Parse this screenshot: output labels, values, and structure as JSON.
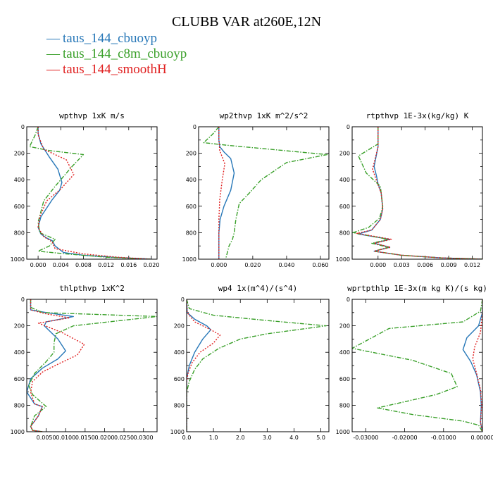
{
  "title": "CLUBB VAR at260E,12N",
  "legend": [
    {
      "label": "taus_144_cbuoyp",
      "color": "#2878b8",
      "dash": "solid"
    },
    {
      "label": "taus_144_c8m_cbuoyp",
      "color": "#3aa02a",
      "dash": "dashdot"
    },
    {
      "label": "taus_144_smoothH",
      "color": "#e02020",
      "dash": "dotted"
    }
  ],
  "chart_data": [
    {
      "type": "line",
      "title": "wpthvp  1xK m/s",
      "xlim": [
        -0.002,
        0.021
      ],
      "ylim": [
        1000,
        0
      ],
      "xticks": [
        0.0,
        0.004,
        0.008,
        0.012,
        0.016,
        0.02
      ],
      "xtick_labels": [
        "0.000",
        "0.004",
        "0.008",
        "0.012",
        "0.016",
        "0.020"
      ],
      "yticks": [
        0,
        200,
        400,
        600,
        800,
        1000
      ],
      "series": [
        {
          "name": "taus_144_cbuoyp",
          "x": [
            0.0,
            0.0,
            0.0005,
            0.002,
            0.0035,
            0.0042,
            0.0038,
            0.0025,
            0.0005,
            0.0,
            0.0005,
            0.0015,
            0.0025,
            0.003,
            0.0045,
            0.008,
            0.013,
            0.02
          ],
          "y": [
            0,
            50,
            130,
            230,
            320,
            420,
            480,
            550,
            680,
            760,
            810,
            840,
            860,
            900,
            950,
            970,
            985,
            1000
          ]
        },
        {
          "name": "taus_144_c8m_cbuoyp",
          "x": [
            0.0,
            -0.0005,
            -0.0015,
            0.002,
            0.008,
            0.006,
            0.003,
            0.001,
            0.0,
            0.0003,
            0.003,
            0.002,
            0.0,
            0.005,
            0.012,
            0.02
          ],
          "y": [
            0,
            60,
            150,
            180,
            210,
            300,
            450,
            560,
            720,
            800,
            850,
            900,
            940,
            960,
            985,
            1000
          ]
        },
        {
          "name": "taus_144_smoothH",
          "x": [
            0.0,
            0.0,
            0.001,
            0.005,
            0.0063,
            0.004,
            0.0015,
            0.0003,
            0.0,
            0.001,
            0.0025,
            0.003,
            0.008,
            0.014,
            0.02
          ],
          "y": [
            0,
            60,
            170,
            250,
            360,
            470,
            560,
            680,
            760,
            830,
            870,
            920,
            960,
            985,
            1000
          ]
        }
      ]
    },
    {
      "type": "line",
      "title": "wp2thvp  1xK m^2/s^2",
      "xlim": [
        -0.012,
        0.065
      ],
      "ylim": [
        1000,
        0
      ],
      "xticks": [
        0.0,
        0.02,
        0.04,
        0.06
      ],
      "xtick_labels": [
        "0.000",
        "0.020",
        "0.040",
        "0.060"
      ],
      "yticks": [
        0,
        200,
        400,
        600,
        800,
        1000
      ],
      "series": [
        {
          "name": "taus_144_cbuoyp",
          "x": [
            0.0,
            0.0,
            0.0005,
            0.003,
            0.007,
            0.009,
            0.007,
            0.003,
            0.0007,
            0.0,
            0.0,
            0.0
          ],
          "y": [
            0,
            100,
            150,
            190,
            240,
            350,
            480,
            600,
            700,
            800,
            900,
            1000
          ]
        },
        {
          "name": "taus_144_c8m_cbuoyp",
          "x": [
            0.0,
            -0.004,
            -0.009,
            0.005,
            0.064,
            0.04,
            0.025,
            0.018,
            0.012,
            0.01,
            0.009,
            0.008,
            0.006,
            0.004
          ],
          "y": [
            0,
            60,
            120,
            140,
            210,
            270,
            400,
            500,
            580,
            700,
            800,
            850,
            900,
            1000
          ]
        },
        {
          "name": "taus_144_smoothH",
          "x": [
            0.0,
            0.0,
            0.0005,
            0.002,
            0.0035,
            0.002,
            0.0005,
            0.0,
            0.0,
            0.0
          ],
          "y": [
            0,
            100,
            180,
            230,
            280,
            400,
            550,
            700,
            850,
            1000
          ]
        }
      ]
    },
    {
      "type": "line",
      "title": "rtpthvp  1E-3x(kg/kg) K",
      "xlim": [
        -0.0033,
        0.0133
      ],
      "ylim": [
        1000,
        0
      ],
      "xticks": [
        0.0,
        0.003,
        0.006,
        0.009,
        0.012
      ],
      "xtick_labels": [
        "0.000",
        "0.003",
        "0.006",
        "0.009",
        "0.012"
      ],
      "yticks": [
        0,
        200,
        400,
        600,
        800,
        1000
      ],
      "series": [
        {
          "name": "taus_144_cbuoyp",
          "x": [
            0.0,
            0.0,
            -0.0005,
            -0.0002,
            0.0,
            0.0004,
            0.0006,
            0.0003,
            -0.0008,
            -0.0025,
            0.0015,
            -0.0005,
            0.0015,
            -0.0005,
            0.003,
            0.008,
            0.0133
          ],
          "y": [
            0,
            150,
            300,
            370,
            430,
            500,
            620,
            700,
            780,
            810,
            850,
            880,
            910,
            940,
            970,
            990,
            1000
          ]
        },
        {
          "name": "taus_144_c8m_cbuoyp",
          "x": [
            0.0,
            0.0,
            -0.0025,
            -0.0015,
            0.0003,
            0.0006,
            0.0002,
            -0.0012,
            -0.0032,
            0.0013,
            -0.0008,
            0.0013,
            -0.0005,
            0.003,
            0.008,
            0.0133
          ],
          "y": [
            0,
            130,
            220,
            350,
            450,
            600,
            690,
            760,
            800,
            850,
            880,
            910,
            940,
            970,
            990,
            1000
          ]
        },
        {
          "name": "taus_144_smoothH",
          "x": [
            0.0,
            0.0,
            -0.0007,
            0.0,
            0.0004,
            0.0006,
            0.0003,
            -0.0008,
            -0.0027,
            0.0017,
            -0.0005,
            0.0016,
            -0.0005,
            0.003,
            0.008,
            0.0133
          ],
          "y": [
            0,
            150,
            320,
            440,
            500,
            620,
            700,
            780,
            805,
            850,
            880,
            910,
            940,
            970,
            990,
            1000
          ]
        }
      ]
    },
    {
      "type": "line",
      "title": "thlpthvp  1xK^2",
      "xlim": [
        0.0,
        0.0335
      ],
      "ylim": [
        1000,
        0
      ],
      "xticks": [
        0.005,
        0.01,
        0.015,
        0.02,
        0.025,
        0.03
      ],
      "xtick_labels": [
        "0.0050",
        "0.0100",
        "0.0150",
        "0.0200",
        "0.0250",
        "0.0300"
      ],
      "yticks": [
        0,
        200,
        400,
        600,
        800,
        1000
      ],
      "series": [
        {
          "name": "taus_144_cbuoyp",
          "x": [
            0.001,
            0.001,
            0.005,
            0.012,
            0.005,
            0.0045,
            0.008,
            0.01,
            0.008,
            0.004,
            0.001,
            0.0,
            0.002,
            0.004,
            0.003,
            0.001,
            0.0015,
            0.004
          ],
          "y": [
            0,
            80,
            100,
            130,
            170,
            200,
            300,
            390,
            450,
            520,
            600,
            700,
            790,
            810,
            880,
            960,
            990,
            1000
          ]
        },
        {
          "name": "taus_144_c8m_cbuoyp",
          "x": [
            0.001,
            0.001,
            0.004,
            0.0335,
            0.012,
            0.0075,
            0.007,
            0.007,
            0.005,
            0.002,
            0.0005,
            0.0015,
            0.005,
            0.002,
            0.001,
            0.0015,
            0.004
          ],
          "y": [
            0,
            60,
            100,
            130,
            200,
            260,
            330,
            400,
            470,
            560,
            650,
            720,
            810,
            880,
            960,
            990,
            1000
          ]
        },
        {
          "name": "taus_144_smoothH",
          "x": [
            0.001,
            0.001,
            0.005,
            0.011,
            0.003,
            0.009,
            0.0148,
            0.013,
            0.008,
            0.004,
            0.0015,
            0.001,
            0.002,
            0.004,
            0.003,
            0.001,
            0.0015,
            0.004
          ],
          "y": [
            0,
            80,
            110,
            140,
            180,
            250,
            340,
            420,
            490,
            550,
            620,
            700,
            790,
            810,
            880,
            960,
            990,
            1000
          ]
        }
      ]
    },
    {
      "type": "line",
      "title": "wp4  1x(m^4)/(s^4)",
      "xlim": [
        0.0,
        5.3
      ],
      "ylim": [
        1000,
        0
      ],
      "xticks": [
        0.0,
        1.0,
        2.0,
        3.0,
        4.0,
        5.0
      ],
      "xtick_labels": [
        "0.0",
        "1.0",
        "2.0",
        "3.0",
        "4.0",
        "5.0"
      ],
      "yticks": [
        0,
        200,
        400,
        600,
        800,
        1000
      ],
      "series": [
        {
          "name": "taus_144_cbuoyp",
          "x": [
            0.0,
            0.02,
            0.3,
            0.75,
            0.9,
            0.6,
            0.3,
            0.1,
            0.0,
            0.0
          ],
          "y": [
            0,
            100,
            150,
            200,
            230,
            300,
            400,
            500,
            600,
            1000
          ]
        },
        {
          "name": "taus_144_c8m_cbuoyp",
          "x": [
            0.0,
            0.1,
            1.0,
            3.0,
            5.2,
            3.0,
            2.0,
            1.2,
            0.6,
            0.3,
            0.1,
            0.0,
            0.0
          ],
          "y": [
            0,
            70,
            120,
            160,
            200,
            260,
            300,
            370,
            450,
            530,
            620,
            700,
            1000
          ]
        },
        {
          "name": "taus_144_smoothH",
          "x": [
            0.0,
            0.02,
            0.3,
            0.9,
            1.25,
            1.0,
            0.5,
            0.2,
            0.05,
            0.0,
            0.0
          ],
          "y": [
            0,
            100,
            170,
            230,
            270,
            330,
            400,
            480,
            560,
            620,
            1000
          ]
        }
      ]
    },
    {
      "type": "line",
      "title": "wprtpthlp  1E-3x(m kg K)/(s kg)",
      "xlim": [
        -0.0335,
        0.0
      ],
      "ylim": [
        1000,
        0
      ],
      "xticks": [
        -0.03,
        -0.02,
        -0.01,
        0.0
      ],
      "xtick_labels": [
        "-0.03000",
        "-0.02000",
        "-0.01000",
        "0.00000"
      ],
      "yticks": [
        0,
        200,
        400,
        600,
        800,
        1000
      ],
      "series": [
        {
          "name": "taus_144_cbuoyp",
          "x": [
            0.0,
            0.0,
            -0.001,
            -0.004,
            -0.005,
            -0.003,
            -0.0015,
            -0.0005,
            -0.0003,
            -0.0005,
            0.0
          ],
          "y": [
            0,
            100,
            200,
            290,
            380,
            470,
            570,
            700,
            800,
            930,
            1000
          ]
        },
        {
          "name": "taus_144_c8m_cbuoyp",
          "x": [
            0.0,
            -0.0005,
            -0.005,
            -0.024,
            -0.0335,
            -0.018,
            -0.008,
            -0.0065,
            -0.012,
            -0.027,
            -0.018,
            -0.005,
            -0.001,
            0.0
          ],
          "y": [
            0,
            90,
            170,
            220,
            370,
            460,
            560,
            660,
            720,
            820,
            870,
            920,
            950,
            1000
          ]
        },
        {
          "name": "taus_144_smoothH",
          "x": [
            0.0,
            0.0,
            -0.0005,
            -0.002,
            -0.0025,
            -0.0015,
            -0.0005,
            -0.0002,
            -0.0005,
            0.0
          ],
          "y": [
            0,
            100,
            250,
            360,
            450,
            560,
            680,
            800,
            930,
            1000
          ]
        }
      ]
    }
  ]
}
